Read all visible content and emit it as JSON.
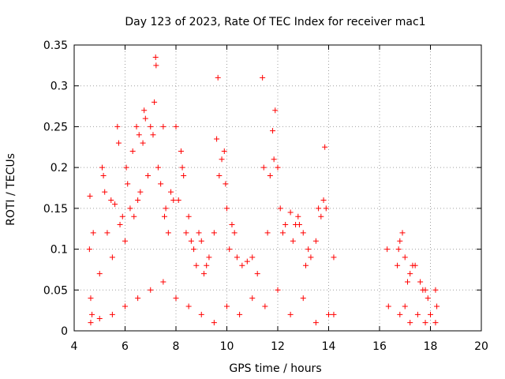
{
  "chart_data": {
    "type": "scatter",
    "title": "Day 123 of 2023, Rate Of TEC Index for receiver mac1",
    "xlabel": "GPS time / hours",
    "ylabel": "ROTI / TECUs",
    "xlim": [
      4,
      20
    ],
    "ylim": [
      0,
      0.35
    ],
    "x_ticks": [
      "4",
      "6",
      "8",
      "10",
      "12",
      "14",
      "16",
      "18",
      "20"
    ],
    "y_ticks": [
      "0",
      "0.05",
      "0.1",
      "0.15",
      "0.2",
      "0.25",
      "0.3",
      "0.35"
    ],
    "grid": true,
    "marker": "+",
    "color": "#ff0000",
    "series": [
      {
        "values": [
          [
            4.6,
            0.1
          ],
          [
            4.62,
            0.165
          ],
          [
            4.65,
            0.04
          ],
          [
            4.7,
            0.02
          ],
          [
            4.75,
            0.12
          ],
          [
            5.0,
            0.07
          ],
          [
            5.1,
            0.2
          ],
          [
            5.15,
            0.19
          ],
          [
            5.2,
            0.17
          ],
          [
            5.3,
            0.12
          ],
          [
            5.45,
            0.16
          ],
          [
            5.5,
            0.09
          ],
          [
            5.6,
            0.155
          ],
          [
            5.7,
            0.25
          ],
          [
            5.75,
            0.23
          ],
          [
            5.8,
            0.13
          ],
          [
            5.9,
            0.14
          ],
          [
            6.0,
            0.11
          ],
          [
            6.05,
            0.2
          ],
          [
            6.1,
            0.18
          ],
          [
            6.2,
            0.15
          ],
          [
            6.3,
            0.22
          ],
          [
            6.35,
            0.14
          ],
          [
            6.45,
            0.25
          ],
          [
            6.5,
            0.16
          ],
          [
            6.55,
            0.24
          ],
          [
            6.6,
            0.17
          ],
          [
            6.7,
            0.23
          ],
          [
            6.75,
            0.27
          ],
          [
            6.8,
            0.26
          ],
          [
            6.9,
            0.19
          ],
          [
            7.0,
            0.25
          ],
          [
            7.1,
            0.24
          ],
          [
            7.15,
            0.28
          ],
          [
            7.2,
            0.335
          ],
          [
            7.22,
            0.325
          ],
          [
            7.3,
            0.2
          ],
          [
            7.4,
            0.18
          ],
          [
            7.5,
            0.25
          ],
          [
            7.55,
            0.14
          ],
          [
            7.6,
            0.15
          ],
          [
            7.7,
            0.12
          ],
          [
            7.8,
            0.17
          ],
          [
            7.9,
            0.16
          ],
          [
            8.0,
            0.25
          ],
          [
            8.1,
            0.16
          ],
          [
            8.2,
            0.22
          ],
          [
            8.25,
            0.2
          ],
          [
            8.3,
            0.19
          ],
          [
            8.4,
            0.12
          ],
          [
            8.5,
            0.14
          ],
          [
            8.6,
            0.11
          ],
          [
            8.7,
            0.1
          ],
          [
            8.8,
            0.08
          ],
          [
            8.9,
            0.12
          ],
          [
            9.0,
            0.11
          ],
          [
            9.1,
            0.07
          ],
          [
            9.2,
            0.08
          ],
          [
            9.3,
            0.09
          ],
          [
            9.5,
            0.12
          ],
          [
            9.6,
            0.235
          ],
          [
            9.65,
            0.31
          ],
          [
            9.7,
            0.19
          ],
          [
            9.8,
            0.21
          ],
          [
            9.9,
            0.22
          ],
          [
            9.95,
            0.18
          ],
          [
            10.0,
            0.15
          ],
          [
            10.1,
            0.1
          ],
          [
            10.2,
            0.13
          ],
          [
            10.3,
            0.12
          ],
          [
            10.4,
            0.09
          ],
          [
            10.6,
            0.08
          ],
          [
            10.8,
            0.085
          ],
          [
            11.0,
            0.09
          ],
          [
            11.2,
            0.07
          ],
          [
            11.4,
            0.31
          ],
          [
            11.45,
            0.2
          ],
          [
            11.6,
            0.12
          ],
          [
            11.7,
            0.19
          ],
          [
            11.8,
            0.245
          ],
          [
            11.85,
            0.21
          ],
          [
            11.9,
            0.27
          ],
          [
            12.0,
            0.2
          ],
          [
            12.1,
            0.15
          ],
          [
            12.2,
            0.12
          ],
          [
            12.3,
            0.13
          ],
          [
            12.5,
            0.145
          ],
          [
            12.6,
            0.11
          ],
          [
            12.7,
            0.13
          ],
          [
            12.8,
            0.14
          ],
          [
            12.85,
            0.13
          ],
          [
            13.0,
            0.12
          ],
          [
            13.1,
            0.08
          ],
          [
            13.2,
            0.1
          ],
          [
            13.3,
            0.09
          ],
          [
            13.5,
            0.11
          ],
          [
            13.6,
            0.15
          ],
          [
            13.7,
            0.14
          ],
          [
            13.8,
            0.16
          ],
          [
            13.85,
            0.225
          ],
          [
            13.9,
            0.15
          ],
          [
            14.2,
            0.09
          ],
          [
            14.2,
            0.02
          ],
          [
            16.3,
            0.1
          ],
          [
            16.35,
            0.03
          ],
          [
            16.7,
            0.08
          ],
          [
            16.75,
            0.1
          ],
          [
            16.8,
            0.11
          ],
          [
            16.9,
            0.12
          ],
          [
            17.0,
            0.09
          ],
          [
            17.1,
            0.06
          ],
          [
            17.2,
            0.07
          ],
          [
            17.3,
            0.08
          ],
          [
            17.4,
            0.08
          ],
          [
            17.6,
            0.06
          ],
          [
            17.7,
            0.05
          ],
          [
            17.8,
            0.05
          ],
          [
            17.9,
            0.04
          ],
          [
            18.2,
            0.05
          ],
          [
            18.25,
            0.03
          ],
          [
            4.65,
            0.01
          ],
          [
            5.0,
            0.015
          ],
          [
            5.5,
            0.02
          ],
          [
            6.0,
            0.03
          ],
          [
            6.5,
            0.04
          ],
          [
            7.0,
            0.05
          ],
          [
            7.5,
            0.06
          ],
          [
            8.0,
            0.04
          ],
          [
            8.5,
            0.03
          ],
          [
            9.0,
            0.02
          ],
          [
            9.5,
            0.01
          ],
          [
            10.0,
            0.03
          ],
          [
            10.5,
            0.02
          ],
          [
            11.0,
            0.04
          ],
          [
            11.5,
            0.03
          ],
          [
            12.0,
            0.05
          ],
          [
            12.5,
            0.02
          ],
          [
            13.0,
            0.04
          ],
          [
            13.5,
            0.01
          ],
          [
            14.0,
            0.02
          ],
          [
            16.8,
            0.02
          ],
          [
            17.0,
            0.03
          ],
          [
            17.2,
            0.01
          ],
          [
            17.5,
            0.02
          ],
          [
            17.8,
            0.01
          ],
          [
            18.0,
            0.02
          ],
          [
            18.2,
            0.01
          ]
        ]
      }
    ]
  }
}
